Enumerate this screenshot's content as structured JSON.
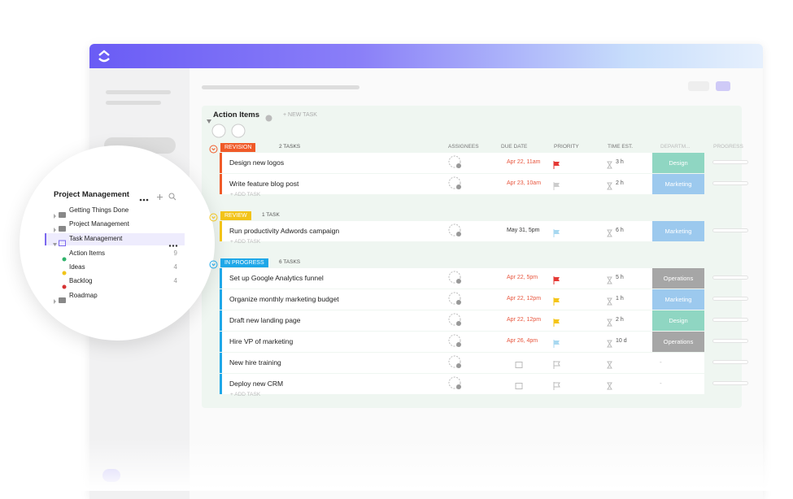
{
  "sidebar": {
    "title": "Project Management",
    "items": [
      {
        "label": "Getting Things Done",
        "kind": "folder"
      },
      {
        "label": "Project Management",
        "kind": "folder"
      },
      {
        "label": "Task Management",
        "kind": "folder-open",
        "active": true
      },
      {
        "label": "Action Items",
        "kind": "list",
        "color": "#2fb36b",
        "count": 9
      },
      {
        "label": "Ideas",
        "kind": "list",
        "color": "#f0c419",
        "count": 4
      },
      {
        "label": "Backlog",
        "kind": "list",
        "color": "#d63333",
        "count": 4
      },
      {
        "label": "Roadmap",
        "kind": "folder"
      }
    ]
  },
  "main": {
    "title": "Action Items",
    "new_task": "+ NEW TASK",
    "add_task": "+ ADD TASK",
    "columns": [
      "ASSIGNEES",
      "DUE DATE",
      "PRIORITY",
      "TIME EST.",
      "DEPARTM...",
      "PROGRESS"
    ],
    "groups": [
      {
        "status": "REVISION",
        "color": "#f05a28",
        "count_label": "2 TASKS",
        "tasks": [
          {
            "name": "Design new logos",
            "due": "Apr 22, 11am",
            "overdue": true,
            "priority": "#e53935",
            "time": "3 h",
            "dept": "Design",
            "dept_color": "#8fd6c2"
          },
          {
            "name": "Write feature blog post",
            "due": "Apr 23, 10am",
            "overdue": true,
            "priority": "#cccccc",
            "time": "2 h",
            "dept": "Marketing",
            "dept_color": "#9cc9ee"
          }
        ]
      },
      {
        "status": "REVIEW",
        "color": "#f2c318",
        "count_label": "1 TASK",
        "tasks": [
          {
            "name": "Run productivity Adwords campaign",
            "due": "May 31, 5pm",
            "overdue": false,
            "priority": "#a8d8f0",
            "time": "6 h",
            "dept": "Marketing",
            "dept_color": "#9cc9ee"
          }
        ]
      },
      {
        "status": "IN PROGRESS",
        "color": "#1ea7e8",
        "count_label": "6 TASKS",
        "tasks": [
          {
            "name": "Set up Google Analytics funnel",
            "due": "Apr 22, 5pm",
            "overdue": true,
            "priority": "#e53935",
            "time": "5 h",
            "dept": "Operations",
            "dept_color": "#a6a6a6"
          },
          {
            "name": "Organize monthly marketing budget",
            "due": "Apr 22, 12pm",
            "overdue": true,
            "priority": "#f5c518",
            "time": "1 h",
            "dept": "Marketing",
            "dept_color": "#9cc9ee"
          },
          {
            "name": "Draft new landing page",
            "due": "Apr 22, 12pm",
            "overdue": true,
            "priority": "#f5c518",
            "time": "2 h",
            "dept": "Design",
            "dept_color": "#8fd6c2"
          },
          {
            "name": "Hire VP of marketing",
            "due": "Apr 26, 4pm",
            "overdue": true,
            "priority": "#a8d8f0",
            "time": "10 d",
            "dept": "Operations",
            "dept_color": "#a6a6a6"
          },
          {
            "name": "New hire training",
            "dept": "-"
          },
          {
            "name": "Deploy new CRM",
            "dept": "-"
          }
        ]
      }
    ]
  }
}
